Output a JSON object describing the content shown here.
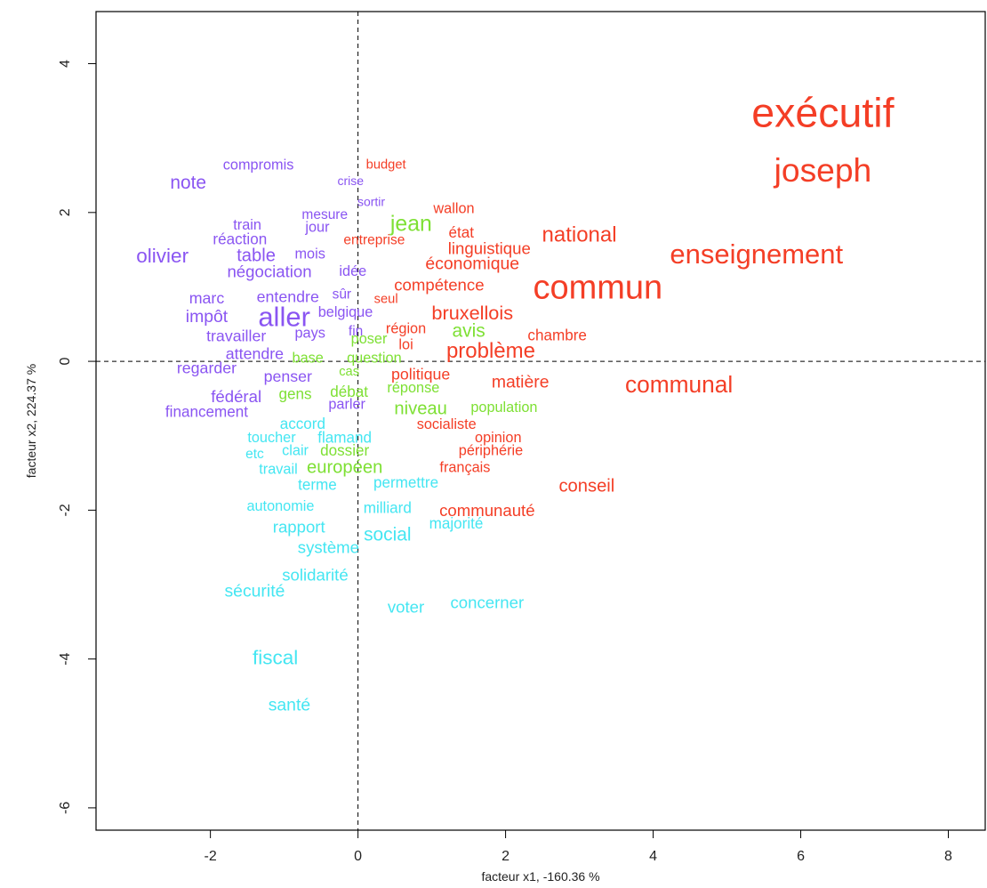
{
  "chart_data": {
    "type": "scatter",
    "title": "",
    "xlabel": "facteur x1, -160.36 %",
    "ylabel": "facteur x2, 224.37 %",
    "xlim": [
      -3.55,
      8.5
    ],
    "ylim": [
      -6.3,
      4.7
    ],
    "xticks": [
      -2,
      0,
      2,
      4,
      6,
      8
    ],
    "yticks": [
      4,
      2,
      0,
      -2,
      -4,
      -6
    ],
    "grid": false,
    "reference_lines": {
      "x": 0,
      "y": 0,
      "style": "dashed"
    },
    "colors": {
      "purple": "#8a55f2",
      "red": "#f43e26",
      "green": "#7ee034",
      "cyan": "#44e6f2"
    },
    "series": [
      {
        "color": "purple",
        "points": [
          {
            "label": "compromis",
            "x": -1.35,
            "y": 2.64,
            "size": 1.05
          },
          {
            "label": "note",
            "x": -2.3,
            "y": 2.4,
            "size": 1.35
          },
          {
            "label": "crise",
            "x": -0.1,
            "y": 2.43,
            "size": 0.9
          },
          {
            "label": "sortir",
            "x": 0.18,
            "y": 2.15,
            "size": 0.9
          },
          {
            "label": "mesure",
            "x": -0.45,
            "y": 1.97,
            "size": 1.0
          },
          {
            "label": "train",
            "x": -1.5,
            "y": 1.83,
            "size": 1.05
          },
          {
            "label": "jour",
            "x": -0.55,
            "y": 1.8,
            "size": 1.05
          },
          {
            "label": "réaction",
            "x": -1.6,
            "y": 1.64,
            "size": 1.1
          },
          {
            "label": "olivier",
            "x": -2.65,
            "y": 1.42,
            "size": 1.45
          },
          {
            "label": "table",
            "x": -1.38,
            "y": 1.42,
            "size": 1.3
          },
          {
            "label": "mois",
            "x": -0.65,
            "y": 1.44,
            "size": 1.05
          },
          {
            "label": "négociation",
            "x": -1.2,
            "y": 1.21,
            "size": 1.2
          },
          {
            "label": "idée",
            "x": -0.07,
            "y": 1.21,
            "size": 1.05
          },
          {
            "label": "marc",
            "x": -2.05,
            "y": 0.85,
            "size": 1.15
          },
          {
            "label": "entendre",
            "x": -0.95,
            "y": 0.87,
            "size": 1.15
          },
          {
            "label": "sûr",
            "x": -0.22,
            "y": 0.9,
            "size": 1.0
          },
          {
            "label": "impôt",
            "x": -2.05,
            "y": 0.6,
            "size": 1.25
          },
          {
            "label": "aller",
            "x": -1.0,
            "y": 0.6,
            "size": 2.0
          },
          {
            "label": "belgique",
            "x": -0.17,
            "y": 0.66,
            "size": 1.05
          },
          {
            "label": "pays",
            "x": -0.65,
            "y": 0.38,
            "size": 1.05
          },
          {
            "label": "fin",
            "x": -0.03,
            "y": 0.4,
            "size": 1.0
          },
          {
            "label": "travailler",
            "x": -1.65,
            "y": 0.34,
            "size": 1.15
          },
          {
            "label": "attendre",
            "x": -1.4,
            "y": 0.1,
            "size": 1.15
          },
          {
            "label": "regarder",
            "x": -2.05,
            "y": -0.09,
            "size": 1.15
          },
          {
            "label": "penser",
            "x": -0.95,
            "y": -0.2,
            "size": 1.15
          },
          {
            "label": "fédéral",
            "x": -1.65,
            "y": -0.47,
            "size": 1.2
          },
          {
            "label": "parler",
            "x": -0.15,
            "y": -0.58,
            "size": 1.05
          },
          {
            "label": "financement",
            "x": -2.05,
            "y": -0.68,
            "size": 1.1
          }
        ]
      },
      {
        "color": "red",
        "points": [
          {
            "label": "exécutif",
            "x": 6.3,
            "y": 3.34,
            "size": 3.0
          },
          {
            "label": "joseph",
            "x": 6.3,
            "y": 2.57,
            "size": 2.4
          },
          {
            "label": "budget",
            "x": 0.38,
            "y": 2.64,
            "size": 0.95
          },
          {
            "label": "wallon",
            "x": 1.3,
            "y": 2.05,
            "size": 1.05
          },
          {
            "label": "état",
            "x": 1.4,
            "y": 1.73,
            "size": 1.1
          },
          {
            "label": "entreprise",
            "x": 0.22,
            "y": 1.63,
            "size": 1.0
          },
          {
            "label": "national",
            "x": 3.0,
            "y": 1.7,
            "size": 1.55
          },
          {
            "label": "linguistique",
            "x": 1.78,
            "y": 1.52,
            "size": 1.2
          },
          {
            "label": "enseignement",
            "x": 5.4,
            "y": 1.44,
            "size": 2.0
          },
          {
            "label": "économique",
            "x": 1.55,
            "y": 1.31,
            "size": 1.25
          },
          {
            "label": "commun",
            "x": 3.25,
            "y": 0.99,
            "size": 2.45
          },
          {
            "label": "compétence",
            "x": 1.1,
            "y": 1.03,
            "size": 1.2
          },
          {
            "label": "seul",
            "x": 0.38,
            "y": 0.83,
            "size": 0.95
          },
          {
            "label": "bruxellois",
            "x": 1.55,
            "y": 0.65,
            "size": 1.4
          },
          {
            "label": "région",
            "x": 0.65,
            "y": 0.44,
            "size": 1.05
          },
          {
            "label": "chambre",
            "x": 2.7,
            "y": 0.35,
            "size": 1.1
          },
          {
            "label": "loi",
            "x": 0.65,
            "y": 0.22,
            "size": 1.05
          },
          {
            "label": "problème",
            "x": 1.8,
            "y": 0.14,
            "size": 1.55
          },
          {
            "label": "politique",
            "x": 0.85,
            "y": -0.17,
            "size": 1.15
          },
          {
            "label": "matière",
            "x": 2.2,
            "y": -0.28,
            "size": 1.25
          },
          {
            "label": "communal",
            "x": 4.35,
            "y": -0.31,
            "size": 1.7
          },
          {
            "label": "socialiste",
            "x": 1.2,
            "y": -0.85,
            "size": 1.05
          },
          {
            "label": "opinion",
            "x": 1.9,
            "y": -1.03,
            "size": 1.05
          },
          {
            "label": "périphérie",
            "x": 1.8,
            "y": -1.2,
            "size": 1.05
          },
          {
            "label": "français",
            "x": 1.45,
            "y": -1.43,
            "size": 1.05
          },
          {
            "label": "conseil",
            "x": 3.1,
            "y": -1.68,
            "size": 1.3
          },
          {
            "label": "communauté",
            "x": 1.75,
            "y": -2.0,
            "size": 1.2
          }
        ]
      },
      {
        "color": "green",
        "points": [
          {
            "label": "jean",
            "x": 0.72,
            "y": 1.84,
            "size": 1.6
          },
          {
            "label": "avis",
            "x": 1.5,
            "y": 0.41,
            "size": 1.35
          },
          {
            "label": "poser",
            "x": 0.15,
            "y": 0.3,
            "size": 1.05
          },
          {
            "label": "base",
            "x": -0.68,
            "y": 0.04,
            "size": 1.05
          },
          {
            "label": "question",
            "x": 0.22,
            "y": 0.04,
            "size": 1.05
          },
          {
            "label": "cas",
            "x": -0.12,
            "y": -0.14,
            "size": 0.95
          },
          {
            "label": "réponse",
            "x": 0.75,
            "y": -0.36,
            "size": 1.05
          },
          {
            "label": "gens",
            "x": -0.85,
            "y": -0.44,
            "size": 1.1
          },
          {
            "label": "débat",
            "x": -0.12,
            "y": -0.41,
            "size": 1.1
          },
          {
            "label": "niveau",
            "x": 0.85,
            "y": -0.64,
            "size": 1.3
          },
          {
            "label": "population",
            "x": 1.98,
            "y": -0.62,
            "size": 1.05
          },
          {
            "label": "dossier",
            "x": -0.18,
            "y": -1.2,
            "size": 1.1
          },
          {
            "label": "européen",
            "x": -0.18,
            "y": -1.43,
            "size": 1.3
          }
        ]
      },
      {
        "color": "cyan",
        "points": [
          {
            "label": "accord",
            "x": -0.75,
            "y": -0.84,
            "size": 1.1
          },
          {
            "label": "toucher",
            "x": -1.17,
            "y": -1.03,
            "size": 1.05
          },
          {
            "label": "flamand",
            "x": -0.18,
            "y": -1.03,
            "size": 1.1
          },
          {
            "label": "clair",
            "x": -0.85,
            "y": -1.2,
            "size": 1.05
          },
          {
            "label": "etc",
            "x": -1.4,
            "y": -1.25,
            "size": 1.0
          },
          {
            "label": "travail",
            "x": -1.08,
            "y": -1.45,
            "size": 1.05
          },
          {
            "label": "permettre",
            "x": 0.65,
            "y": -1.63,
            "size": 1.1
          },
          {
            "label": "terme",
            "x": -0.55,
            "y": -1.66,
            "size": 1.1
          },
          {
            "label": "autonomie",
            "x": -1.05,
            "y": -1.95,
            "size": 1.05
          },
          {
            "label": "milliard",
            "x": 0.4,
            "y": -1.97,
            "size": 1.1
          },
          {
            "label": "majorité",
            "x": 1.33,
            "y": -2.18,
            "size": 1.1
          },
          {
            "label": "rapport",
            "x": -0.8,
            "y": -2.22,
            "size": 1.2
          },
          {
            "label": "social",
            "x": 0.4,
            "y": -2.33,
            "size": 1.35
          },
          {
            "label": "système",
            "x": -0.4,
            "y": -2.5,
            "size": 1.2
          },
          {
            "label": "solidarité",
            "x": -0.58,
            "y": -2.87,
            "size": 1.2
          },
          {
            "label": "sécurité",
            "x": -1.4,
            "y": -3.09,
            "size": 1.25
          },
          {
            "label": "concerner",
            "x": 1.75,
            "y": -3.24,
            "size": 1.2
          },
          {
            "label": "voter",
            "x": 0.65,
            "y": -3.3,
            "size": 1.2
          },
          {
            "label": "fiscal",
            "x": -1.12,
            "y": -3.98,
            "size": 1.45
          },
          {
            "label": "santé",
            "x": -0.93,
            "y": -4.62,
            "size": 1.25
          }
        ]
      }
    ]
  }
}
